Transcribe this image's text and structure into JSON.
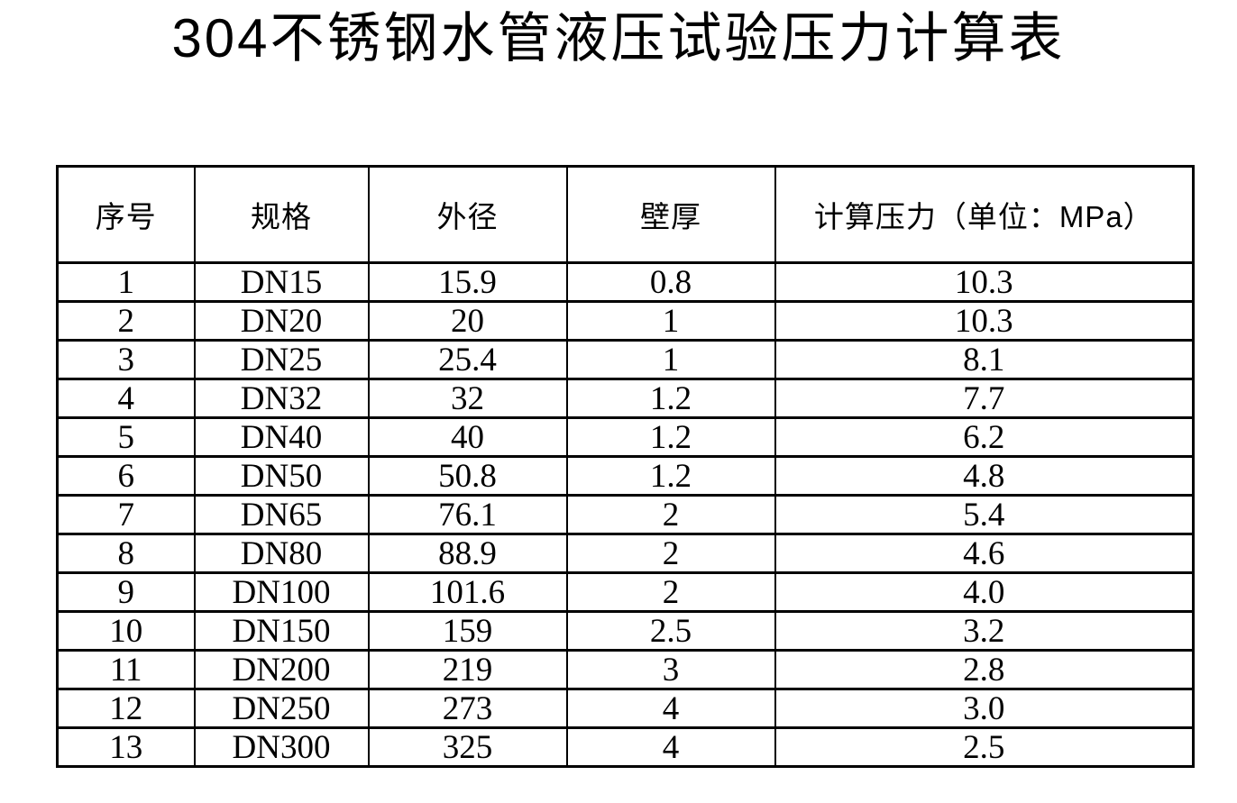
{
  "page": {
    "title": "304不锈钢水管液压试验压力计算表",
    "background_color": "#ffffff",
    "text_color": "#000000",
    "border_color": "#000000"
  },
  "table": {
    "columns": [
      "序号",
      "规格",
      "外径",
      "壁厚",
      "计算压力（单位：MPa）"
    ],
    "rows": [
      [
        "1",
        "DN15",
        "15.9",
        "0.8",
        "10.3"
      ],
      [
        "2",
        "DN20",
        "20",
        "1",
        "10.3"
      ],
      [
        "3",
        "DN25",
        "25.4",
        "1",
        "8.1"
      ],
      [
        "4",
        "DN32",
        "32",
        "1.2",
        "7.7"
      ],
      [
        "5",
        "DN40",
        "40",
        "1.2",
        "6.2"
      ],
      [
        "6",
        "DN50",
        "50.8",
        "1.2",
        "4.8"
      ],
      [
        "7",
        "DN65",
        "76.1",
        "2",
        "5.4"
      ],
      [
        "8",
        "DN80",
        "88.9",
        "2",
        "4.6"
      ],
      [
        "9",
        "DN100",
        "101.6",
        "2",
        "4.0"
      ],
      [
        "10",
        "DN150",
        "159",
        "2.5",
        "3.2"
      ],
      [
        "11",
        "DN200",
        "219",
        "3",
        "2.8"
      ],
      [
        "12",
        "DN250",
        "273",
        "4",
        "3.0"
      ],
      [
        "13",
        "DN300",
        "325",
        "4",
        "2.5"
      ]
    ]
  }
}
